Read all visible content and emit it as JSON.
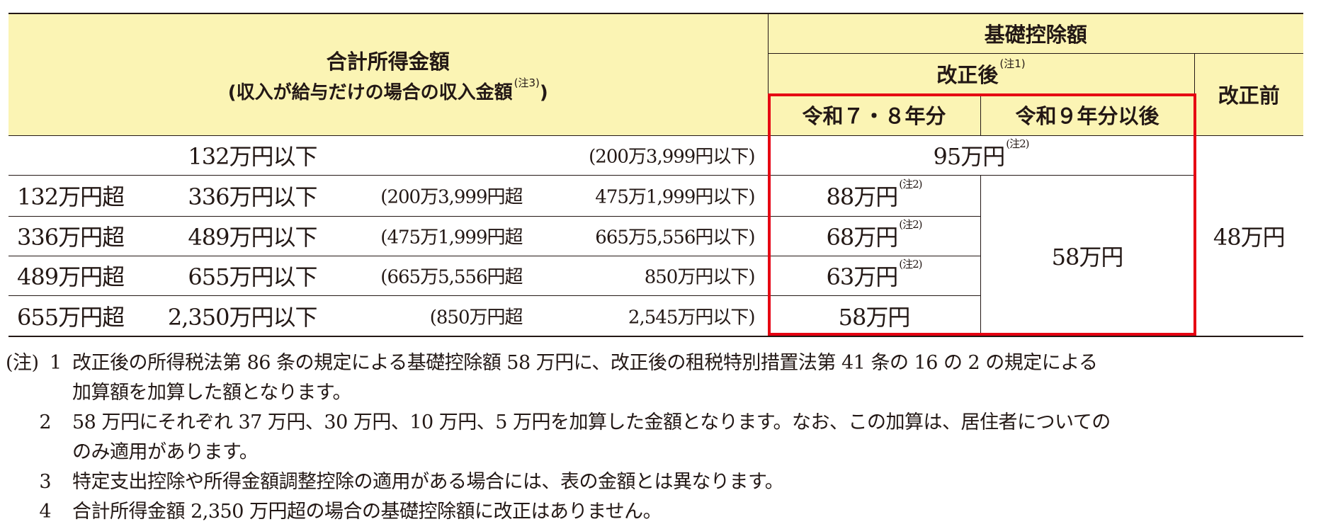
{
  "colors": {
    "header_bg": "#fbf4b4",
    "highlight_border": "#e60012"
  },
  "header": {
    "income_title": "合計所得金額",
    "income_subtitle": "(収入が給与だけの場合の収入金額",
    "income_note": "(注3)",
    "income_subtitle_end": ")",
    "deduction_title": "基礎控除額",
    "after": "改正後",
    "after_note": "(注1)",
    "before": "改正前",
    "r7_8": "令和７・８年分",
    "r9": "令和９年分以後"
  },
  "rows": [
    {
      "from": "",
      "to": "132万円以下",
      "salary_from": "",
      "salary_to": "(200万3,999円以下)",
      "r7_8": "95万円",
      "r7_8_note": "(注2)"
    },
    {
      "from": "132万円超",
      "to": "336万円以下",
      "salary_from": "(200万3,999円超",
      "salary_to": "475万1,999円以下)",
      "r7_8": "88万円",
      "r7_8_note": "(注2)"
    },
    {
      "from": "336万円超",
      "to": "489万円以下",
      "salary_from": "(475万1,999円超",
      "salary_to": "665万5,556円以下)",
      "r7_8": "68万円",
      "r7_8_note": "(注2)"
    },
    {
      "from": "489万円超",
      "to": "655万円以下",
      "salary_from": "(665万5,556円超",
      "salary_to": "850万円以下)",
      "r7_8": "63万円",
      "r7_8_note": "(注2)"
    },
    {
      "from": "655万円超",
      "to": "2,350万円以下",
      "salary_from": "(850万円超",
      "salary_to": "2,545万円以下)",
      "r7_8": "58万円",
      "r7_8_note": ""
    }
  ],
  "r9_merged": "58万円",
  "before_merged": "48万円",
  "notes": {
    "label": "(注)",
    "items": [
      {
        "num": "1",
        "line1": "改正後の所得税法第 86 条の規定による基礎控除額 58 万円に、改正後の租税特別措置法第 41 条の 16 の 2 の規定による",
        "line2": "加算額を加算した額となります。"
      },
      {
        "num": "2",
        "line1": "58 万円にそれぞれ 37 万円、30 万円、10 万円、5 万円を加算した金額となります。なお、この加算は、居住者についての",
        "line2": "のみ適用があります。"
      },
      {
        "num": "3",
        "line1": "特定支出控除や所得金額調整控除の適用がある場合には、表の金額とは異なります。"
      },
      {
        "num": "4",
        "line1": "合計所得金額 2,350 万円超の場合の基礎控除額に改正はありません。"
      }
    ]
  }
}
